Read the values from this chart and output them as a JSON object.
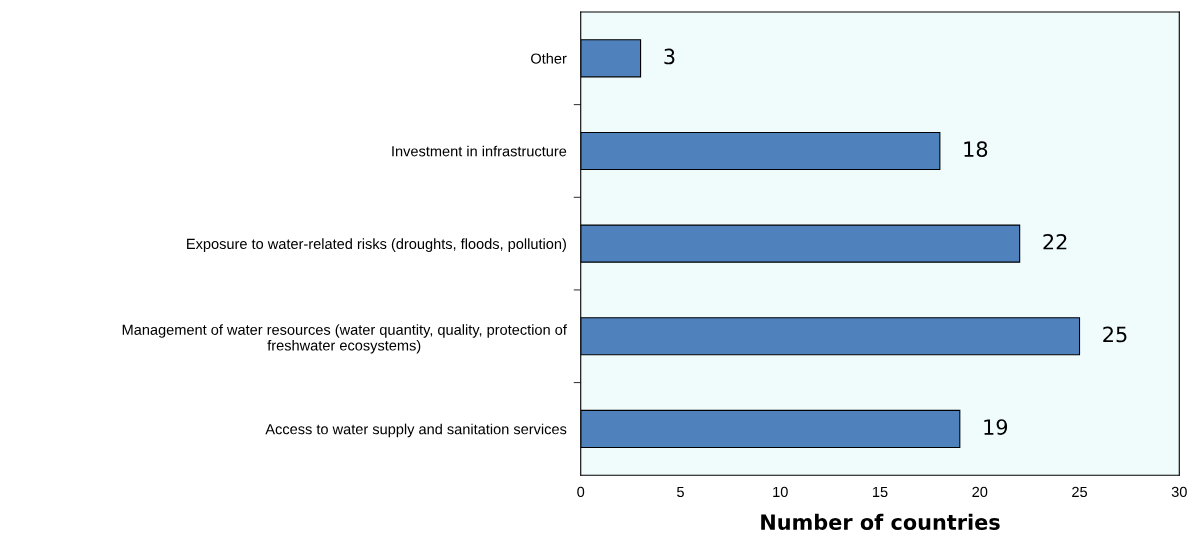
{
  "chart_data": {
    "type": "bar",
    "orientation": "horizontal",
    "xlabel": "Number of countries",
    "categories": [
      "Other",
      "Investment in infrastructure",
      "Exposure to water-related risks (droughts, floods, pollution)",
      "Management of water resources (water quantity, quality, protection of freshwater ecosystems)",
      "Access to water supply and sanitation services"
    ],
    "values": [
      3,
      18,
      22,
      25,
      19
    ],
    "color": "#4f81bd",
    "xlim": [
      0,
      30
    ],
    "xticks": [
      0,
      5,
      10,
      15,
      20,
      25,
      30
    ],
    "grid": false,
    "legend": false,
    "data_labels": true
  }
}
